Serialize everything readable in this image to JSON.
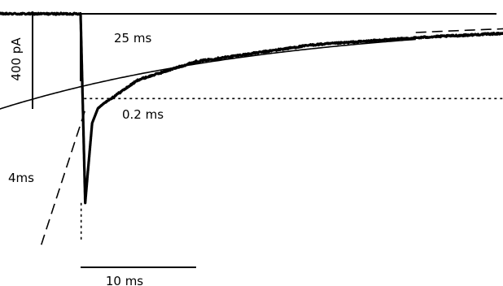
{
  "chart_data": {
    "type": "line",
    "title": "",
    "xlabel": "",
    "ylabel": "",
    "x_unit": "ms",
    "y_unit": "pA",
    "xlim": [
      -12,
      130
    ],
    "ylim": [
      -1220,
      60
    ],
    "trace": {
      "baseline_pA": 0,
      "stimulus_onset_ms": 0,
      "steady_state_pA": -20,
      "min_pA": -960,
      "rise_ms": 0.4,
      "noise_pA": 4,
      "samples": [
        {
          "t": -11,
          "y": 0
        },
        {
          "t": -1,
          "y": 0
        },
        {
          "t": 0,
          "y": 0
        },
        {
          "t": 0.4,
          "y": -960
        },
        {
          "t": 0.6,
          "y": -822
        },
        {
          "t": 1,
          "y": -555
        },
        {
          "t": 1.5,
          "y": -480
        },
        {
          "t": 2,
          "y": -455
        },
        {
          "t": 5,
          "y": -335
        },
        {
          "t": 10,
          "y": -242
        },
        {
          "t": 20,
          "y": -158
        },
        {
          "t": 30,
          "y": -118
        },
        {
          "t": 40,
          "y": -89
        },
        {
          "t": 60,
          "y": -57
        },
        {
          "t": 80,
          "y": -40
        },
        {
          "t": 100,
          "y": -30
        },
        {
          "t": 129,
          "y": -20
        }
      ]
    },
    "fits": [
      {
        "label": "0.2 ms",
        "tau_ms": 0.2,
        "style": "dotted",
        "from_ms": 0,
        "to_ms": 129
      },
      {
        "label": "4ms",
        "tau_ms": 4,
        "style": "dashed",
        "from_ms": -11,
        "to_ms": 1
      },
      {
        "label": "25 ms",
        "tau_ms": 25,
        "style": "solid",
        "from_ms": -11,
        "to_ms": 29
      },
      {
        "label": "",
        "tau_ms": 25,
        "style": "dashed",
        "from_ms": 29,
        "to_ms": 129
      }
    ],
    "scale_bars": {
      "y_value_pA": 400,
      "y_label": "400 pA",
      "x_value_ms": 10,
      "x_label": "10 ms"
    },
    "grid": false,
    "legend": "none"
  }
}
